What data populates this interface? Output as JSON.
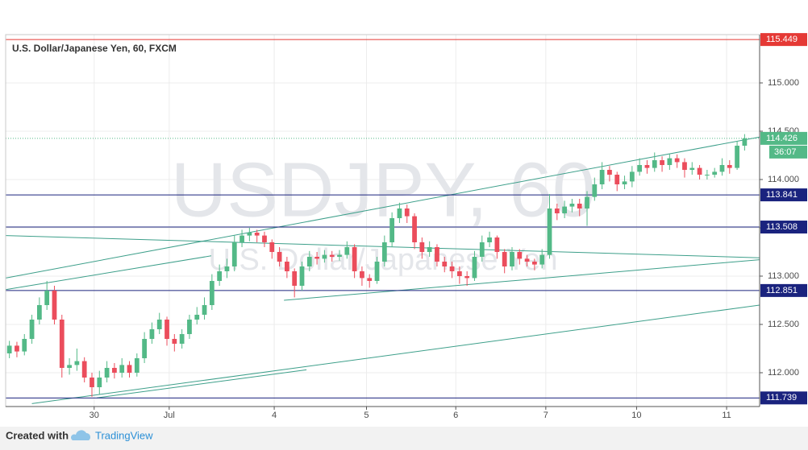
{
  "chart_data": {
    "type": "candlestick",
    "title": "U.S. Dollar/Japanese Yen, 60, FXCM",
    "watermark": "USDJPY, 60",
    "watermark_sub": "U.S. Dollar/Japanese Yen",
    "countdown": "36:07",
    "footer": {
      "prefix": "Created with",
      "brand": "TradingView"
    },
    "up_color": "#53b987",
    "down_color": "#eb4d5c",
    "open": [
      112.2,
      112.28,
      112.22,
      112.35,
      112.55,
      112.7,
      112.85,
      112.55,
      112.05,
      112.08,
      112.12,
      111.95,
      111.85,
      111.95,
      112.05,
      112.0,
      112.08,
      112.0,
      112.15,
      112.35,
      112.45,
      112.55,
      112.35,
      112.3,
      112.4,
      112.55,
      112.6,
      112.7,
      112.95,
      113.05,
      113.1,
      113.35,
      113.42,
      113.45,
      113.42,
      113.35,
      113.25,
      113.15,
      113.05,
      112.9,
      113.1,
      113.2,
      113.18,
      113.22,
      113.2,
      113.22,
      113.3,
      113.05,
      112.98,
      112.95,
      113.15,
      113.35,
      113.6,
      113.7,
      113.62,
      113.35,
      113.25,
      113.3,
      113.15,
      113.1,
      113.05,
      113.0,
      112.98,
      113.2,
      113.35,
      113.4,
      113.25,
      113.1,
      113.25,
      113.18,
      113.15,
      113.12,
      113.22,
      113.7,
      113.65,
      113.72,
      113.75,
      113.7,
      113.82,
      113.95,
      114.1,
      114.05,
      113.95,
      113.98,
      114.08,
      114.15,
      114.12,
      114.2,
      114.15,
      114.22,
      114.18,
      114.1,
      114.12,
      114.05,
      114.05,
      114.08,
      114.15,
      114.12,
      114.35
    ],
    "high": [
      112.33,
      112.32,
      112.4,
      112.6,
      112.78,
      112.95,
      112.9,
      112.6,
      112.15,
      112.25,
      112.16,
      112.0,
      112.02,
      112.12,
      112.1,
      112.15,
      112.12,
      112.2,
      112.42,
      112.52,
      112.62,
      112.58,
      112.4,
      112.45,
      112.6,
      112.68,
      112.78,
      113.02,
      113.12,
      113.18,
      113.42,
      113.48,
      113.5,
      113.48,
      113.46,
      113.38,
      113.3,
      113.2,
      113.08,
      113.15,
      113.26,
      113.25,
      113.27,
      113.26,
      113.27,
      113.36,
      113.33,
      113.1,
      113.02,
      113.2,
      113.42,
      113.66,
      113.76,
      113.74,
      113.65,
      113.4,
      113.36,
      113.33,
      113.2,
      113.15,
      113.1,
      113.05,
      113.26,
      113.42,
      113.46,
      113.42,
      113.28,
      113.3,
      113.28,
      113.22,
      113.18,
      113.28,
      113.85,
      113.75,
      113.78,
      113.8,
      113.8,
      113.88,
      114.02,
      114.18,
      114.14,
      114.08,
      114.04,
      114.14,
      114.22,
      114.2,
      114.28,
      114.24,
      114.27,
      114.26,
      114.22,
      114.18,
      114.15,
      114.1,
      114.12,
      114.22,
      114.2,
      114.4,
      114.47
    ],
    "low": [
      112.15,
      112.16,
      112.18,
      112.3,
      112.5,
      112.65,
      112.5,
      111.95,
      111.98,
      112.02,
      111.9,
      111.75,
      111.78,
      111.9,
      111.94,
      111.95,
      111.95,
      111.96,
      112.1,
      112.3,
      112.4,
      112.28,
      112.22,
      112.25,
      112.35,
      112.5,
      112.55,
      112.65,
      112.9,
      112.98,
      113.05,
      113.3,
      113.36,
      113.35,
      113.3,
      113.18,
      113.1,
      112.98,
      112.78,
      112.85,
      113.05,
      113.12,
      113.14,
      113.15,
      113.16,
      113.18,
      112.98,
      112.9,
      112.88,
      112.92,
      113.1,
      113.3,
      113.55,
      113.55,
      113.28,
      113.18,
      113.2,
      113.1,
      113.04,
      112.98,
      112.92,
      112.9,
      112.95,
      113.15,
      113.3,
      113.18,
      113.03,
      113.06,
      113.12,
      113.1,
      113.06,
      113.08,
      113.18,
      113.58,
      113.6,
      113.66,
      113.62,
      113.52,
      113.78,
      113.9,
      113.98,
      113.88,
      113.9,
      113.92,
      114.04,
      114.06,
      114.08,
      114.08,
      114.1,
      114.12,
      114.02,
      114.05,
      114.0,
      114.0,
      114.02,
      114.04,
      114.06,
      114.1,
      114.3
    ],
    "close": [
      112.28,
      112.22,
      112.35,
      112.55,
      112.7,
      112.85,
      112.55,
      112.05,
      112.08,
      112.12,
      111.95,
      111.85,
      111.95,
      112.05,
      112.0,
      112.08,
      112.0,
      112.15,
      112.35,
      112.45,
      112.55,
      112.35,
      112.3,
      112.4,
      112.55,
      112.6,
      112.7,
      112.95,
      113.05,
      113.1,
      113.35,
      113.42,
      113.45,
      113.42,
      113.35,
      113.25,
      113.15,
      113.05,
      112.9,
      113.1,
      113.2,
      113.18,
      113.22,
      113.2,
      113.22,
      113.3,
      113.05,
      112.98,
      112.95,
      113.15,
      113.35,
      113.6,
      113.7,
      113.62,
      113.35,
      113.25,
      113.3,
      113.15,
      113.1,
      113.05,
      113.0,
      112.98,
      113.2,
      113.35,
      113.4,
      113.25,
      113.1,
      113.25,
      113.18,
      113.15,
      113.12,
      113.22,
      113.7,
      113.65,
      113.72,
      113.75,
      113.7,
      113.82,
      113.95,
      114.1,
      114.05,
      113.95,
      113.98,
      114.08,
      114.15,
      114.12,
      114.2,
      114.15,
      114.22,
      114.18,
      114.1,
      114.12,
      114.05,
      114.05,
      114.08,
      114.15,
      114.12,
      114.35,
      114.426
    ],
    "last_color": "#53b987",
    "xlim": [
      -0.5,
      100
    ],
    "xticks": [
      {
        "value": 11.3,
        "label": "30"
      },
      {
        "value": 21.3,
        "label": "Jul"
      },
      {
        "value": 35.3,
        "label": "4"
      },
      {
        "value": 47.6,
        "label": "5"
      },
      {
        "value": 59.5,
        "label": "6"
      },
      {
        "value": 71.5,
        "label": "7"
      },
      {
        "value": 83.6,
        "label": "10"
      },
      {
        "value": 95.6,
        "label": "11"
      }
    ],
    "ylim": [
      111.65,
      115.5
    ],
    "yticks": [
      {
        "value": 112,
        "label": "112.000"
      },
      {
        "value": 112.5,
        "label": "112.500"
      },
      {
        "value": 113,
        "label": "113.000"
      },
      {
        "value": 113.5,
        "label": "113.500"
      },
      {
        "value": 114,
        "label": "114.000"
      },
      {
        "value": 114.5,
        "label": "114.500"
      },
      {
        "value": 115,
        "label": "115.000"
      }
    ],
    "grid": true,
    "levels": [
      {
        "value": 115.449,
        "color": "#e53935"
      },
      {
        "value": 113.841,
        "color": "#1a237e"
      },
      {
        "value": 113.508,
        "color": "#1a237e"
      },
      {
        "value": 112.851,
        "color": "#1a237e"
      },
      {
        "value": 111.739,
        "color": "#1a237e"
      }
    ],
    "trendline_color": "#3d9f8a",
    "trendlines": [
      {
        "x": [
          -0.5,
          100
        ],
        "y": [
          112.98,
          114.44
        ]
      },
      {
        "x": [
          -0.5,
          26.9
        ],
        "y": [
          112.86,
          113.21
        ]
      },
      {
        "x": [
          -0.5,
          100
        ],
        "y": [
          113.42,
          113.19
        ]
      },
      {
        "x": [
          36.6,
          100
        ],
        "y": [
          112.75,
          113.17
        ]
      },
      {
        "x": [
          3.0,
          100
        ],
        "y": [
          111.68,
          112.7
        ]
      },
      {
        "x": [
          11.65,
          39.6
        ],
        "y": [
          111.74,
          112.03
        ]
      }
    ]
  }
}
